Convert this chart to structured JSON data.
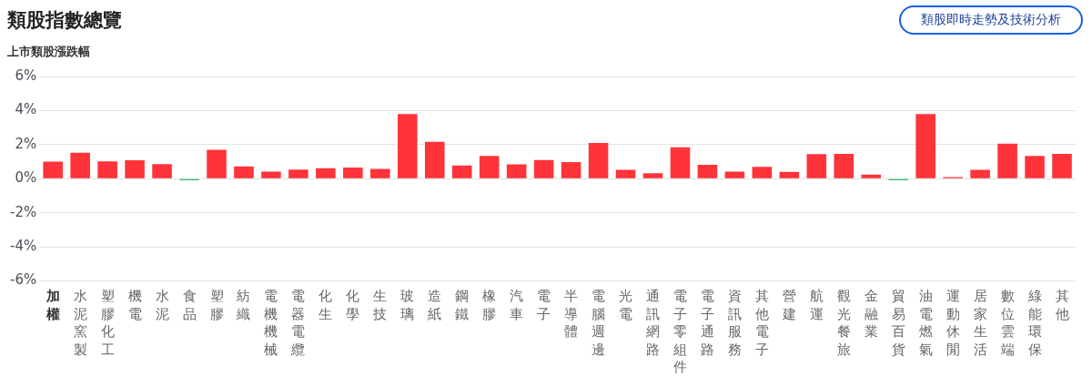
{
  "chart_data": {
    "type": "bar",
    "title": "類股指數總覽",
    "ylabel": "上市類股漲跌幅",
    "annotations": [
      "類股即時走勢及技術分析"
    ],
    "categories": [
      "加權",
      "水泥窯製",
      "塑膠化工",
      "機電",
      "水泥",
      "食品",
      "塑膠",
      "紡織",
      "電機機械",
      "電器電纜",
      "化生",
      "化學",
      "生技",
      "玻璃",
      "造紙",
      "鋼鐵",
      "橡膠",
      "汽車",
      "電子",
      "半導體",
      "電腦週邊",
      "光電",
      "通訊網路",
      "電子零組件",
      "電子通路",
      "資訊服務",
      "其他電子",
      "營建",
      "航運",
      "觀光餐旅",
      "金融業",
      "貿易百貨",
      "油電燃氣",
      "運動休閒",
      "居家生活",
      "數位雲端",
      "綠能環保",
      "其他"
    ],
    "values": [
      1.0,
      1.52,
      1.02,
      1.08,
      0.86,
      -0.08,
      1.7,
      0.72,
      0.42,
      0.54,
      0.62,
      0.66,
      0.58,
      3.8,
      2.16,
      0.78,
      1.34,
      0.84,
      1.1,
      0.98,
      2.1,
      0.52,
      0.32,
      1.84,
      0.82,
      0.42,
      0.7,
      0.4,
      1.44,
      1.46,
      0.24,
      -0.08,
      3.8,
      0.1,
      0.52,
      2.06,
      1.34,
      1.46
    ],
    "colors": [
      "#ff333a",
      "#ff333a",
      "#ff333a",
      "#ff333a",
      "#ff333a",
      "#00a650",
      "#ff333a",
      "#ff333a",
      "#ff333a",
      "#ff333a",
      "#ff333a",
      "#ff333a",
      "#ff333a",
      "#ff333a",
      "#ff333a",
      "#ff333a",
      "#ff333a",
      "#ff333a",
      "#ff333a",
      "#ff333a",
      "#ff333a",
      "#ff333a",
      "#ff333a",
      "#ff333a",
      "#ff333a",
      "#ff333a",
      "#ff333a",
      "#ff333a",
      "#ff333a",
      "#ff333a",
      "#ff333a",
      "#00a650",
      "#ff333a",
      "#ff333a",
      "#ff333a",
      "#ff333a",
      "#ff333a",
      "#ff333a"
    ],
    "ylim": [
      -6,
      6
    ],
    "yticks": [
      {
        "value": -6,
        "label": "-6%"
      },
      {
        "value": -4,
        "label": "-4%"
      },
      {
        "value": -2,
        "label": "-2%"
      },
      {
        "value": 0,
        "label": "0%"
      },
      {
        "value": 2,
        "label": "2%"
      },
      {
        "value": 4,
        "label": "4%"
      },
      {
        "value": 6,
        "label": "6%"
      }
    ],
    "grid": "y",
    "legend": false
  }
}
